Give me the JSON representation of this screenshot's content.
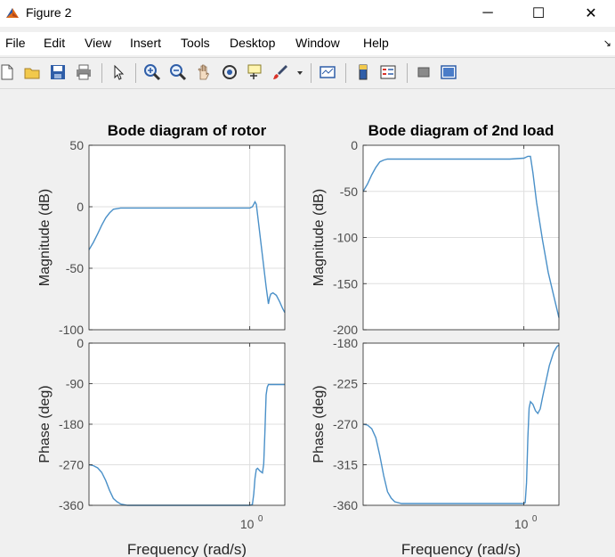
{
  "window": {
    "title": "Figure 2"
  },
  "window_controls": {
    "minimize": "─",
    "maximize": "☐",
    "close": "✕"
  },
  "menu": [
    "File",
    "Edit",
    "View",
    "Insert",
    "Tools",
    "Desktop",
    "Window",
    "Help"
  ],
  "menu_arrow": "↘",
  "toolbar": [
    "new-figure-icon",
    "open-file-icon",
    "save-icon",
    "print-icon",
    "pointer-icon",
    "zoom-in-icon",
    "zoom-out-icon",
    "pan-icon",
    "rotate-3d-icon",
    "data-cursor-icon",
    "brush-icon",
    "brush-dropdown-icon",
    "link-plot-icon",
    "colorbar-icon",
    "legend-icon",
    "hide-plot-tools-icon",
    "show-plot-tools-icon"
  ],
  "chart_data": [
    {
      "type": "line",
      "title": "Bode diagram of rotor",
      "xlabel": "",
      "ylabel": "Magnitude (dB)",
      "xscale": "log",
      "xlim": [
        0.3,
        1.3
      ],
      "ylim": [
        -100,
        50
      ],
      "yticks": [
        -100,
        -50,
        0,
        50
      ],
      "grid": true,
      "color": "#4a90c8",
      "x": [
        0.3,
        0.31,
        0.32,
        0.33,
        0.34,
        0.35,
        0.36,
        0.38,
        0.4,
        0.5,
        0.7,
        0.9,
        1.0,
        1.02,
        1.03,
        1.04,
        1.05,
        1.07,
        1.1,
        1.13,
        1.15,
        1.16,
        1.17,
        1.19,
        1.22,
        1.25,
        1.28,
        1.3
      ],
      "y": [
        -35,
        -29,
        -22,
        -15,
        -9,
        -5,
        -2,
        -1,
        -1,
        -1,
        -1,
        -1,
        -1,
        0,
        2,
        4,
        2,
        -15,
        -40,
        -65,
        -79,
        -74,
        -71,
        -70,
        -72,
        -77,
        -83,
        -86
      ]
    },
    {
      "type": "line",
      "title": "Bode diagram of 2nd load",
      "xlabel": "",
      "ylabel": "Magnitude (dB)",
      "xscale": "log",
      "xlim": [
        0.3,
        1.3
      ],
      "ylim": [
        -200,
        0
      ],
      "yticks": [
        -200,
        -150,
        -100,
        -50,
        0
      ],
      "grid": true,
      "color": "#4a90c8",
      "x": [
        0.3,
        0.31,
        0.32,
        0.33,
        0.34,
        0.35,
        0.36,
        0.38,
        0.4,
        0.5,
        0.7,
        0.9,
        1.0,
        1.03,
        1.05,
        1.07,
        1.1,
        1.15,
        1.2,
        1.25,
        1.3
      ],
      "y": [
        -50,
        -42,
        -32,
        -24,
        -18,
        -16,
        -15,
        -15,
        -15,
        -15,
        -15,
        -15,
        -14,
        -12,
        -12,
        -30,
        -62,
        -103,
        -138,
        -163,
        -187
      ]
    },
    {
      "type": "line",
      "title": "",
      "xlabel": "Frequency  (rad/s)",
      "ylabel": "Phase (deg)",
      "xscale": "log",
      "xlim": [
        0.3,
        1.3
      ],
      "ylim": [
        -360,
        0
      ],
      "yticks": [
        -360,
        -270,
        -180,
        -90,
        0
      ],
      "xticks_label": "10",
      "xticks_exp": "0",
      "grid": true,
      "color": "#4a90c8",
      "x": [
        0.3,
        0.31,
        0.32,
        0.33,
        0.34,
        0.35,
        0.36,
        0.37,
        0.38,
        0.4,
        0.5,
        0.7,
        0.9,
        1.0,
        1.02,
        1.03,
        1.04,
        1.05,
        1.06,
        1.08,
        1.1,
        1.11,
        1.12,
        1.13,
        1.14,
        1.15,
        1.17,
        1.2,
        1.25,
        1.3
      ],
      "y": [
        -270,
        -272,
        -277,
        -287,
        -305,
        -327,
        -345,
        -352,
        -357,
        -360,
        -360,
        -360,
        -360,
        -360,
        -358,
        -335,
        -300,
        -280,
        -278,
        -284,
        -288,
        -268,
        -200,
        -115,
        -98,
        -92,
        -92,
        -92,
        -92,
        -92
      ]
    },
    {
      "type": "line",
      "title": "",
      "xlabel": "Frequency  (rad/s)",
      "ylabel": "Phase (deg)",
      "xscale": "log",
      "xlim": [
        0.3,
        1.3
      ],
      "ylim": [
        -360,
        -180
      ],
      "yticks": [
        -360,
        -315,
        -270,
        -225,
        -180
      ],
      "xticks_label": "10",
      "xticks_exp": "0",
      "grid": true,
      "color": "#4a90c8",
      "x": [
        0.3,
        0.31,
        0.32,
        0.33,
        0.34,
        0.35,
        0.36,
        0.37,
        0.38,
        0.4,
        0.5,
        0.7,
        0.9,
        1.0,
        1.01,
        1.02,
        1.03,
        1.04,
        1.05,
        1.07,
        1.09,
        1.11,
        1.13,
        1.15,
        1.18,
        1.21,
        1.25,
        1.28,
        1.3
      ],
      "y": [
        -270,
        -271,
        -275,
        -285,
        -305,
        -327,
        -345,
        -352,
        -356,
        -358,
        -358,
        -358,
        -358,
        -358,
        -357,
        -335,
        -285,
        -252,
        -245,
        -248,
        -255,
        -258,
        -253,
        -240,
        -222,
        -205,
        -190,
        -184,
        -182
      ]
    }
  ]
}
